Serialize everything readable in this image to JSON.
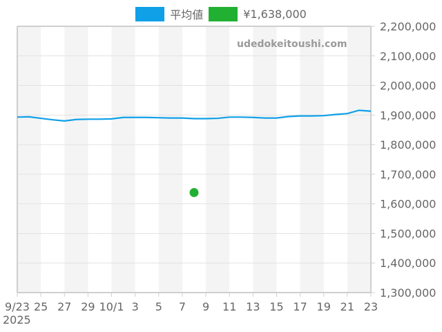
{
  "legend": {
    "items": [
      {
        "label": "平均値",
        "color": "#0fa0e8"
      },
      {
        "label": "¥1,638,000",
        "color": "#22b033"
      }
    ]
  },
  "watermark": "udedokeitoushi.com",
  "chart_data": {
    "type": "line",
    "title": "",
    "xlabel": "",
    "ylabel": "",
    "ylim": [
      1300000,
      2200000
    ],
    "y_ticks": [
      "1,300,000",
      "1,400,000",
      "1,500,000",
      "1,600,000",
      "1,700,000",
      "1,800,000",
      "1,900,000",
      "2,000,000",
      "2,100,000",
      "2,200,000"
    ],
    "x_tick_labels": [
      "9/23",
      "25",
      "27",
      "29",
      "10/1",
      "3",
      "5",
      "7",
      "9",
      "11",
      "13",
      "15",
      "17",
      "19",
      "21",
      "23"
    ],
    "x_year_label": "2025",
    "grid": true,
    "legend_position": "top",
    "series": [
      {
        "name": "平均値",
        "type": "line",
        "color": "#0fa0e8",
        "x": [
          "9/23",
          "9/24",
          "9/25",
          "9/26",
          "9/27",
          "9/28",
          "9/29",
          "9/30",
          "10/1",
          "10/2",
          "10/3",
          "10/4",
          "10/5",
          "10/6",
          "10/7",
          "10/8",
          "10/9",
          "10/10",
          "10/11",
          "10/12",
          "10/13",
          "10/14",
          "10/15",
          "10/16",
          "10/17",
          "10/18",
          "10/19",
          "10/20",
          "10/21",
          "10/22",
          "10/23"
        ],
        "values": [
          1893000,
          1894000,
          1889000,
          1884000,
          1880000,
          1885000,
          1886000,
          1886000,
          1887000,
          1892000,
          1892000,
          1892000,
          1891000,
          1890000,
          1890000,
          1888000,
          1888000,
          1889000,
          1893000,
          1893000,
          1892000,
          1890000,
          1890000,
          1895000,
          1897000,
          1897000,
          1898000,
          1902000,
          1905000,
          1916000,
          1913000
        ]
      },
      {
        "name": "¥1,638,000",
        "type": "scatter",
        "color": "#22b033",
        "x": [
          "10/8"
        ],
        "values": [
          1638000
        ]
      }
    ]
  }
}
